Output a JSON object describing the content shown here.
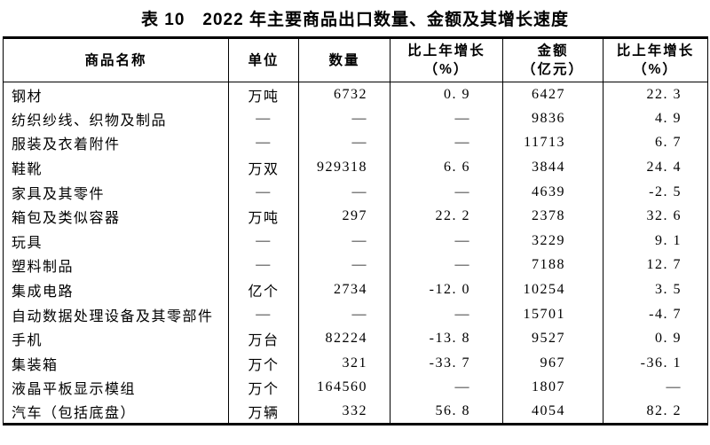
{
  "title": "表 10　2022 年主要商品出口数量、金额及其增长速度",
  "colors": {
    "text": "#000000",
    "border": "#000000",
    "background": "#ffffff"
  },
  "table": {
    "dash": "—",
    "columns": [
      {
        "key": "name",
        "label": "商品名称",
        "label2": ""
      },
      {
        "key": "unit",
        "label": "单位",
        "label2": ""
      },
      {
        "key": "quantity",
        "label": "数量",
        "label2": ""
      },
      {
        "key": "quantity_growth",
        "label": "比上年增长",
        "label2": "（%）"
      },
      {
        "key": "amount",
        "label": "金额",
        "label2": "（亿元）"
      },
      {
        "key": "amount_growth",
        "label": "比上年增长",
        "label2": "（%）"
      }
    ],
    "rows": [
      [
        "钢材",
        "万吨",
        "6732",
        "0.9",
        "6427",
        "22.3"
      ],
      [
        "纺织纱线、织物及制品",
        "—",
        "—",
        "—",
        "9836",
        "4.9"
      ],
      [
        "服装及衣着附件",
        "—",
        "—",
        "—",
        "11713",
        "6.7"
      ],
      [
        "鞋靴",
        "万双",
        "929318",
        "6.6",
        "3844",
        "24.4"
      ],
      [
        "家具及其零件",
        "—",
        "—",
        "—",
        "4639",
        "-2.5"
      ],
      [
        "箱包及类似容器",
        "万吨",
        "297",
        "22.2",
        "2378",
        "32.6"
      ],
      [
        "玩具",
        "—",
        "—",
        "—",
        "3229",
        "9.1"
      ],
      [
        "塑料制品",
        "—",
        "—",
        "—",
        "7188",
        "12.7"
      ],
      [
        "集成电路",
        "亿个",
        "2734",
        "-12.0",
        "10254",
        "3.5"
      ],
      [
        "自动数据处理设备及其零部件",
        "—",
        "—",
        "—",
        "15701",
        "-4.7"
      ],
      [
        "手机",
        "万台",
        "82224",
        "-13.8",
        "9527",
        "0.9"
      ],
      [
        "集装箱",
        "万个",
        "321",
        "-33.7",
        "967",
        "-36.1"
      ],
      [
        "液晶平板显示模组",
        "万个",
        "164560",
        "—",
        "1807",
        "—"
      ],
      [
        "汽车（包括底盘）",
        "万辆",
        "332",
        "56.8",
        "4054",
        "82.2"
      ]
    ]
  }
}
